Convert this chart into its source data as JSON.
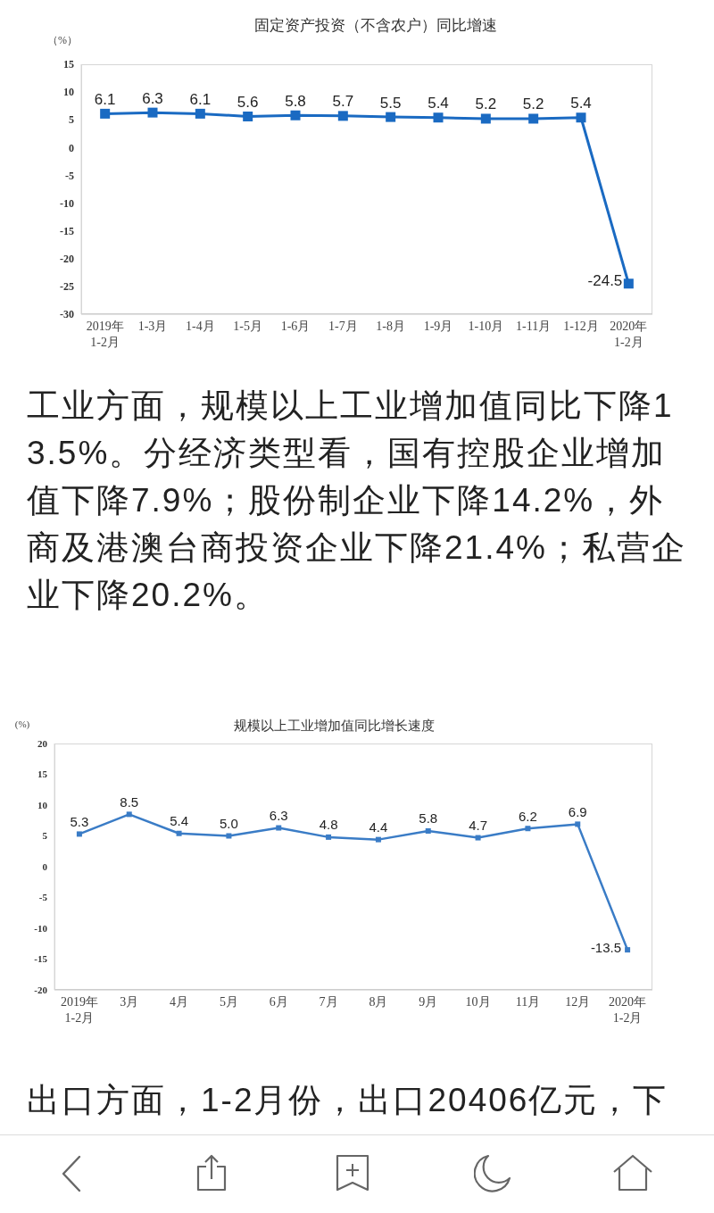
{
  "chart_data": [
    {
      "type": "line",
      "title": "固定资产投资（不含农户）同比增速",
      "ylabel": "（%）",
      "categories": [
        "2019年\n1-2月",
        "1-3月",
        "1-4月",
        "1-5月",
        "1-6月",
        "1-7月",
        "1-8月",
        "1-9月",
        "1-10月",
        "1-11月",
        "1-12月",
        "2020年\n1-2月"
      ],
      "values": [
        6.1,
        6.3,
        6.1,
        5.6,
        5.8,
        5.7,
        5.5,
        5.4,
        5.2,
        5.2,
        5.4,
        -24.5
      ],
      "color": "#1a6ac2",
      "ylim": [
        -30,
        15
      ],
      "yticks": [
        -30,
        -25,
        -20,
        -15,
        -10,
        -5,
        0,
        5,
        10,
        15
      ],
      "marker": "square",
      "data_labels": true
    },
    {
      "type": "other",
      "annotations": [
        "工业方面，规模以上工业增加值同比下降13.5%。分经济类型看，国有控股企业增加值下降7.9%；股份制企业下降14.2%，外商及港澳台商投资企业下降21.4%；私营企业下降20.2%。"
      ]
    },
    {
      "type": "line",
      "title": "规模以上工业增加值同比增长速度",
      "ylabel": "(%)",
      "categories": [
        "2019年\n1-2月",
        "3月",
        "4月",
        "5月",
        "6月",
        "7月",
        "8月",
        "9月",
        "10月",
        "11月",
        "12月",
        "2020年\n1-2月"
      ],
      "values": [
        5.3,
        8.5,
        5.4,
        5.0,
        6.3,
        4.8,
        4.4,
        5.8,
        4.7,
        6.2,
        6.9,
        -13.5
      ],
      "value_labels": [
        "5.3",
        "8.5",
        "5.4",
        "5.0",
        "6.3",
        "4.8",
        "4.4",
        "5.8",
        "4.7",
        "6.2",
        "6.9",
        "-13.5"
      ],
      "color": "#3a7cc6",
      "ylim": [
        -20,
        20
      ],
      "yticks": [
        -20,
        -15,
        -10,
        -5,
        0,
        5,
        10,
        15,
        20
      ],
      "marker": "square"
    },
    {
      "type": "other",
      "annotations": [
        "出口方面，1-2月份，出口20406亿元，下"
      ]
    }
  ]
}
